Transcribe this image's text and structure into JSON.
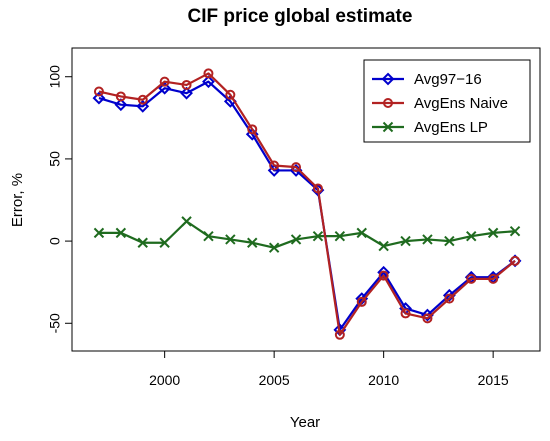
{
  "chart_data": {
    "type": "line",
    "title": "CIF price global estimate",
    "xlabel": "Year",
    "ylabel": "Error, %",
    "xlim": [
      1996.5,
      2016.5
    ],
    "ylim": [
      -62,
      112
    ],
    "x_ticks": [
      2000,
      2005,
      2010,
      2015
    ],
    "y_ticks": [
      -50,
      0,
      50,
      100
    ],
    "legend_position": "top-right",
    "grid": false,
    "x": [
      1997,
      1998,
      1999,
      2000,
      2001,
      2002,
      2003,
      2004,
      2005,
      2006,
      2007,
      2008,
      2009,
      2010,
      2011,
      2012,
      2013,
      2014,
      2015,
      2016
    ],
    "series": [
      {
        "name": "Avg97−16",
        "color": "#0000cc",
        "marker": "diamond",
        "values": [
          87,
          83,
          82,
          93,
          90,
          97,
          85,
          65,
          43,
          43,
          31,
          -54,
          -35,
          -19,
          -41,
          -45,
          -33,
          -22,
          -22,
          -12
        ]
      },
      {
        "name": "AvgEns Naive",
        "color": "#b22222",
        "marker": "circle",
        "values": [
          91,
          88,
          86,
          97,
          95,
          102,
          89,
          68,
          46,
          45,
          32,
          -57,
          -37,
          -21,
          -44,
          -47,
          -35,
          -23,
          -23,
          -12
        ]
      },
      {
        "name": "AvgEns LP",
        "color": "#1f6b1f",
        "marker": "x",
        "values": [
          5,
          5,
          -1,
          -1,
          12,
          3,
          1,
          -1,
          -4,
          1,
          3,
          3,
          5,
          -3,
          0,
          1,
          0,
          3,
          5,
          6
        ]
      }
    ]
  }
}
